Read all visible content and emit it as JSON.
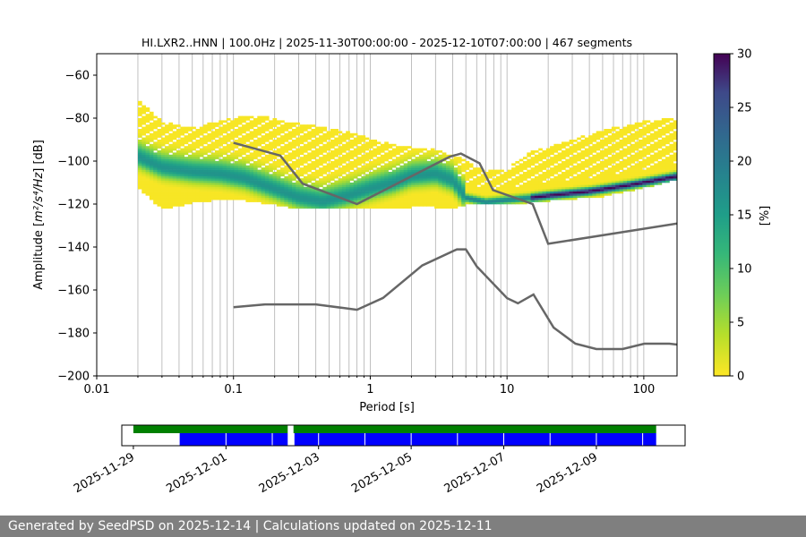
{
  "chart_data": {
    "type": "heatmap",
    "title": "HI.LXR2..HNN | 100.0Hz | 2025-11-30T00:00:00 - 2025-12-10T07:00:00 | 467 segments",
    "xlabel": "Period [s]",
    "ylabel_main": "Amplitude [",
    "ylabel_math": "m²/s⁴/Hz",
    "ylabel_end": "] [dB]",
    "x_scale": "log",
    "xlim": [
      0.01,
      175
    ],
    "ylim": [
      -200,
      -50
    ],
    "x_ticks": [
      0.01,
      0.1,
      1,
      10,
      100
    ],
    "x_tick_labels": [
      "0.01",
      "0.1",
      "1",
      "10",
      "100"
    ],
    "y_ticks": [
      -200,
      -180,
      -160,
      -140,
      -120,
      -100,
      -80,
      -60
    ],
    "y_tick_labels": [
      "−200",
      "−180",
      "−160",
      "−140",
      "−120",
      "−100",
      "−80",
      "−60"
    ],
    "grid": true,
    "colorbar": {
      "label": "[%]",
      "range": [
        0,
        30
      ],
      "ticks": [
        0,
        5,
        10,
        15,
        20,
        25,
        30
      ],
      "tick_labels": [
        "0",
        "5",
        "10",
        "15",
        "20",
        "25",
        "30"
      ],
      "colormap": "viridis_r"
    },
    "psd_mode": [
      [
        0.02,
        -98
      ],
      [
        0.03,
        -103
      ],
      [
        0.05,
        -105
      ],
      [
        0.08,
        -106
      ],
      [
        0.12,
        -108
      ],
      [
        0.2,
        -113
      ],
      [
        0.3,
        -117
      ],
      [
        0.45,
        -119
      ],
      [
        0.7,
        -116
      ],
      [
        1,
        -113
      ],
      [
        1.5,
        -110
      ],
      [
        2,
        -107
      ],
      [
        3,
        -106
      ],
      [
        4,
        -109
      ],
      [
        5,
        -117
      ],
      [
        7,
        -119
      ],
      [
        10,
        -118
      ],
      [
        15,
        -117
      ],
      [
        20,
        -116
      ],
      [
        40,
        -114
      ],
      [
        80,
        -111
      ],
      [
        175,
        -107
      ]
    ],
    "psd_spread_upper": [
      [
        0.02,
        -72
      ],
      [
        0.03,
        -82
      ],
      [
        0.05,
        -85
      ],
      [
        0.1,
        -80
      ],
      [
        0.15,
        -79
      ],
      [
        0.25,
        -82
      ],
      [
        0.4,
        -84
      ],
      [
        0.6,
        -86
      ],
      [
        0.8,
        -88
      ],
      [
        1,
        -90
      ],
      [
        1.5,
        -93
      ],
      [
        2,
        -94
      ],
      [
        3,
        -95
      ],
      [
        5,
        -100
      ],
      [
        7,
        -105
      ],
      [
        10,
        -104
      ],
      [
        15,
        -96
      ],
      [
        25,
        -92
      ],
      [
        50,
        -86
      ],
      [
        100,
        -82
      ],
      [
        175,
        -80
      ]
    ],
    "psd_spread_lower": [
      [
        0.02,
        -112
      ],
      [
        0.03,
        -122
      ],
      [
        0.05,
        -119
      ],
      [
        0.1,
        -117
      ],
      [
        0.2,
        -120
      ],
      [
        0.3,
        -122
      ],
      [
        0.5,
        -122
      ],
      [
        1,
        -122
      ],
      [
        2,
        -121
      ],
      [
        3,
        -121
      ],
      [
        4,
        -122
      ],
      [
        5,
        -120
      ],
      [
        7,
        -120
      ],
      [
        10,
        -120
      ],
      [
        20,
        -118
      ],
      [
        50,
        -116
      ],
      [
        100,
        -112
      ],
      [
        175,
        -108
      ]
    ],
    "noise_model_high": [
      [
        0.1,
        -91.5
      ],
      [
        0.22,
        -97.4
      ],
      [
        0.32,
        -110.5
      ],
      [
        0.8,
        -120
      ],
      [
        3.8,
        -98
      ],
      [
        4.6,
        -96.5
      ],
      [
        6.3,
        -101
      ],
      [
        7.9,
        -113.5
      ],
      [
        15.4,
        -120
      ],
      [
        20,
        -138.5
      ],
      [
        354.8,
        -126
      ],
      [
        10000,
        -80.1
      ],
      [
        100000,
        -48.5
      ]
    ],
    "noise_model_low": [
      [
        0.1,
        -168
      ],
      [
        0.17,
        -166.7
      ],
      [
        0.4,
        -166.7
      ],
      [
        0.8,
        -169.2
      ],
      [
        1.24,
        -163.7
      ],
      [
        2.4,
        -148.6
      ],
      [
        4.3,
        -141.1
      ],
      [
        5,
        -141.1
      ],
      [
        6,
        -149
      ],
      [
        10,
        -163.8
      ],
      [
        12,
        -166.2
      ],
      [
        15.6,
        -162.1
      ],
      [
        21.9,
        -177.5
      ],
      [
        31.6,
        -185
      ],
      [
        45,
        -187.5
      ],
      [
        70,
        -187.5
      ],
      [
        101,
        -185
      ],
      [
        154,
        -185
      ],
      [
        328,
        -187.5
      ],
      [
        600,
        -187.5
      ],
      [
        10000,
        -184.4
      ],
      [
        100000,
        -151.9
      ]
    ]
  },
  "timeline": {
    "x_tick_labels": [
      "2025-11-29",
      "2025-12-01",
      "2025-12-03",
      "2025-12-05",
      "2025-12-07",
      "2025-12-09"
    ],
    "range_start": "2025-11-28T18:00:00",
    "range_end": "2025-12-10T22:00:00",
    "data_available_color": "#008000",
    "psd_used_color": "#0000ff",
    "available_spans": [
      [
        "2025-11-29T00:00:00",
        "2025-12-02T08:00:00"
      ],
      [
        "2025-12-02T11:00:00",
        "2025-12-10T07:00:00"
      ]
    ],
    "used_spans": [
      [
        "2025-11-30T00:00:00",
        "2025-12-02T08:00:00"
      ],
      [
        "2025-12-02T11:30:00",
        "2025-12-10T07:00:00"
      ]
    ]
  },
  "footer": {
    "text": "Generated by SeedPSD on 2025-12-14 | Calculations updated on 2025-12-11"
  }
}
